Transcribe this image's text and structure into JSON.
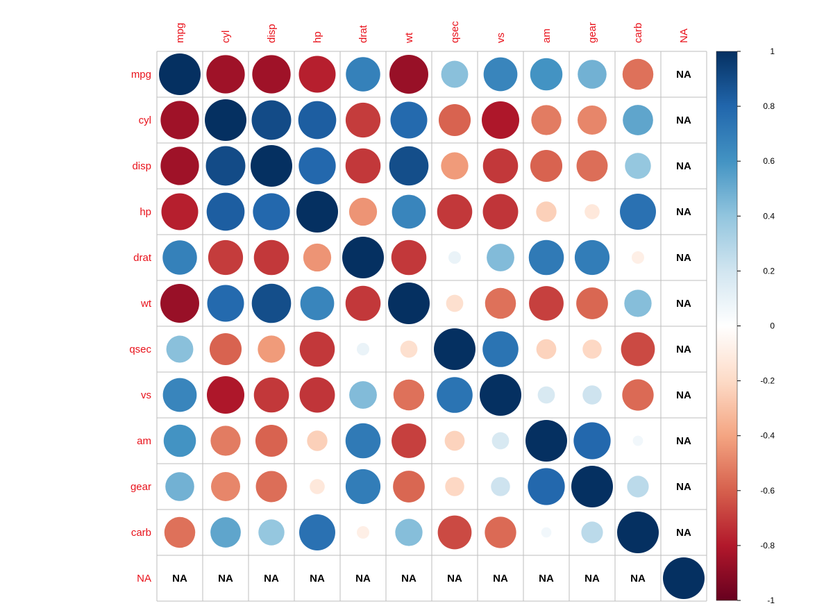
{
  "chart_data": {
    "type": "heatmap",
    "style": "circle correlation matrix",
    "variables": [
      "mpg",
      "cyl",
      "disp",
      "hp",
      "drat",
      "wt",
      "qsec",
      "vs",
      "am",
      "gear",
      "carb",
      "NA"
    ],
    "matrix": [
      [
        1,
        -0.85,
        -0.85,
        -0.78,
        0.68,
        -0.87,
        0.42,
        0.66,
        0.6,
        0.48,
        -0.55,
        null
      ],
      [
        -0.85,
        1,
        0.9,
        0.83,
        -0.7,
        0.78,
        -0.59,
        -0.81,
        -0.52,
        -0.49,
        0.53,
        null
      ],
      [
        -0.85,
        0.9,
        1,
        0.79,
        -0.71,
        0.89,
        -0.43,
        -0.71,
        -0.59,
        -0.56,
        0.39,
        null
      ],
      [
        -0.78,
        0.83,
        0.79,
        1,
        -0.45,
        0.66,
        -0.71,
        -0.72,
        -0.24,
        -0.13,
        0.75,
        null
      ],
      [
        0.68,
        -0.7,
        -0.71,
        -0.45,
        1,
        -0.71,
        0.09,
        0.44,
        0.71,
        0.7,
        -0.09,
        null
      ],
      [
        -0.87,
        0.78,
        0.89,
        0.66,
        -0.71,
        1,
        -0.17,
        -0.55,
        -0.69,
        -0.58,
        0.43,
        null
      ],
      [
        0.42,
        -0.59,
        -0.43,
        -0.71,
        0.09,
        -0.17,
        1,
        0.74,
        -0.23,
        -0.21,
        -0.66,
        null
      ],
      [
        0.66,
        -0.81,
        -0.71,
        -0.72,
        0.44,
        -0.55,
        0.74,
        1,
        0.17,
        0.21,
        -0.57,
        null
      ],
      [
        0.6,
        -0.52,
        -0.59,
        -0.24,
        0.71,
        -0.69,
        -0.23,
        0.17,
        1,
        0.79,
        0.06,
        null
      ],
      [
        0.48,
        -0.49,
        -0.56,
        -0.13,
        0.7,
        -0.58,
        -0.21,
        0.21,
        0.79,
        1,
        0.27,
        null
      ],
      [
        -0.55,
        0.53,
        0.39,
        0.75,
        -0.09,
        0.43,
        -0.66,
        -0.57,
        0.06,
        0.27,
        1,
        null
      ],
      [
        null,
        null,
        null,
        null,
        null,
        null,
        null,
        null,
        null,
        null,
        null,
        1
      ]
    ],
    "na_text": "NA",
    "colorbar": {
      "range": [
        -1,
        1
      ],
      "ticks": [
        "1",
        "0.8",
        "0.6",
        "0.4",
        "0.2",
        "0",
        "-0.2",
        "-0.4",
        "-0.6",
        "-0.8",
        "-1"
      ]
    },
    "colors": {
      "label": "#e8121b",
      "grid": "#bebebe",
      "scale": [
        "#67001f",
        "#b2182b",
        "#d6604d",
        "#f4a582",
        "#fddbc7",
        "#ffffff",
        "#d1e5f0",
        "#92c5de",
        "#4393c3",
        "#2166ac",
        "#053061"
      ]
    }
  }
}
